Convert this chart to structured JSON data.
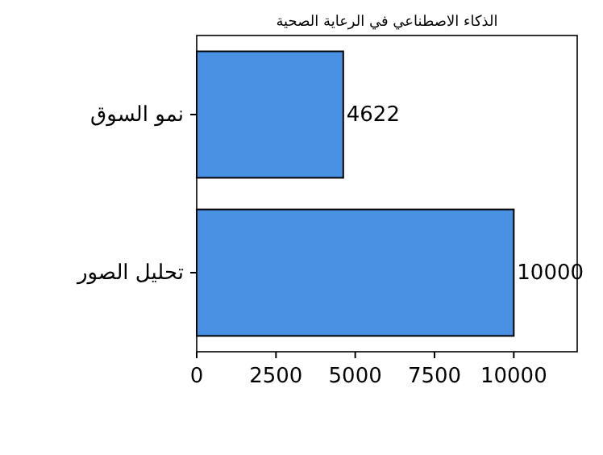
{
  "chart_data": {
    "type": "bar",
    "orientation": "horizontal",
    "title": "الذكاء الاصطناعي في الرعاية الصحية",
    "categories": [
      "نمو السوق",
      "تحليل الصور"
    ],
    "values": [
      4622,
      10000
    ],
    "color": "#4a90e2",
    "xlim": [
      0,
      12000
    ],
    "xticks": [
      0,
      2500,
      5000,
      7500,
      10000
    ],
    "data_labels": true,
    "grid": false
  }
}
